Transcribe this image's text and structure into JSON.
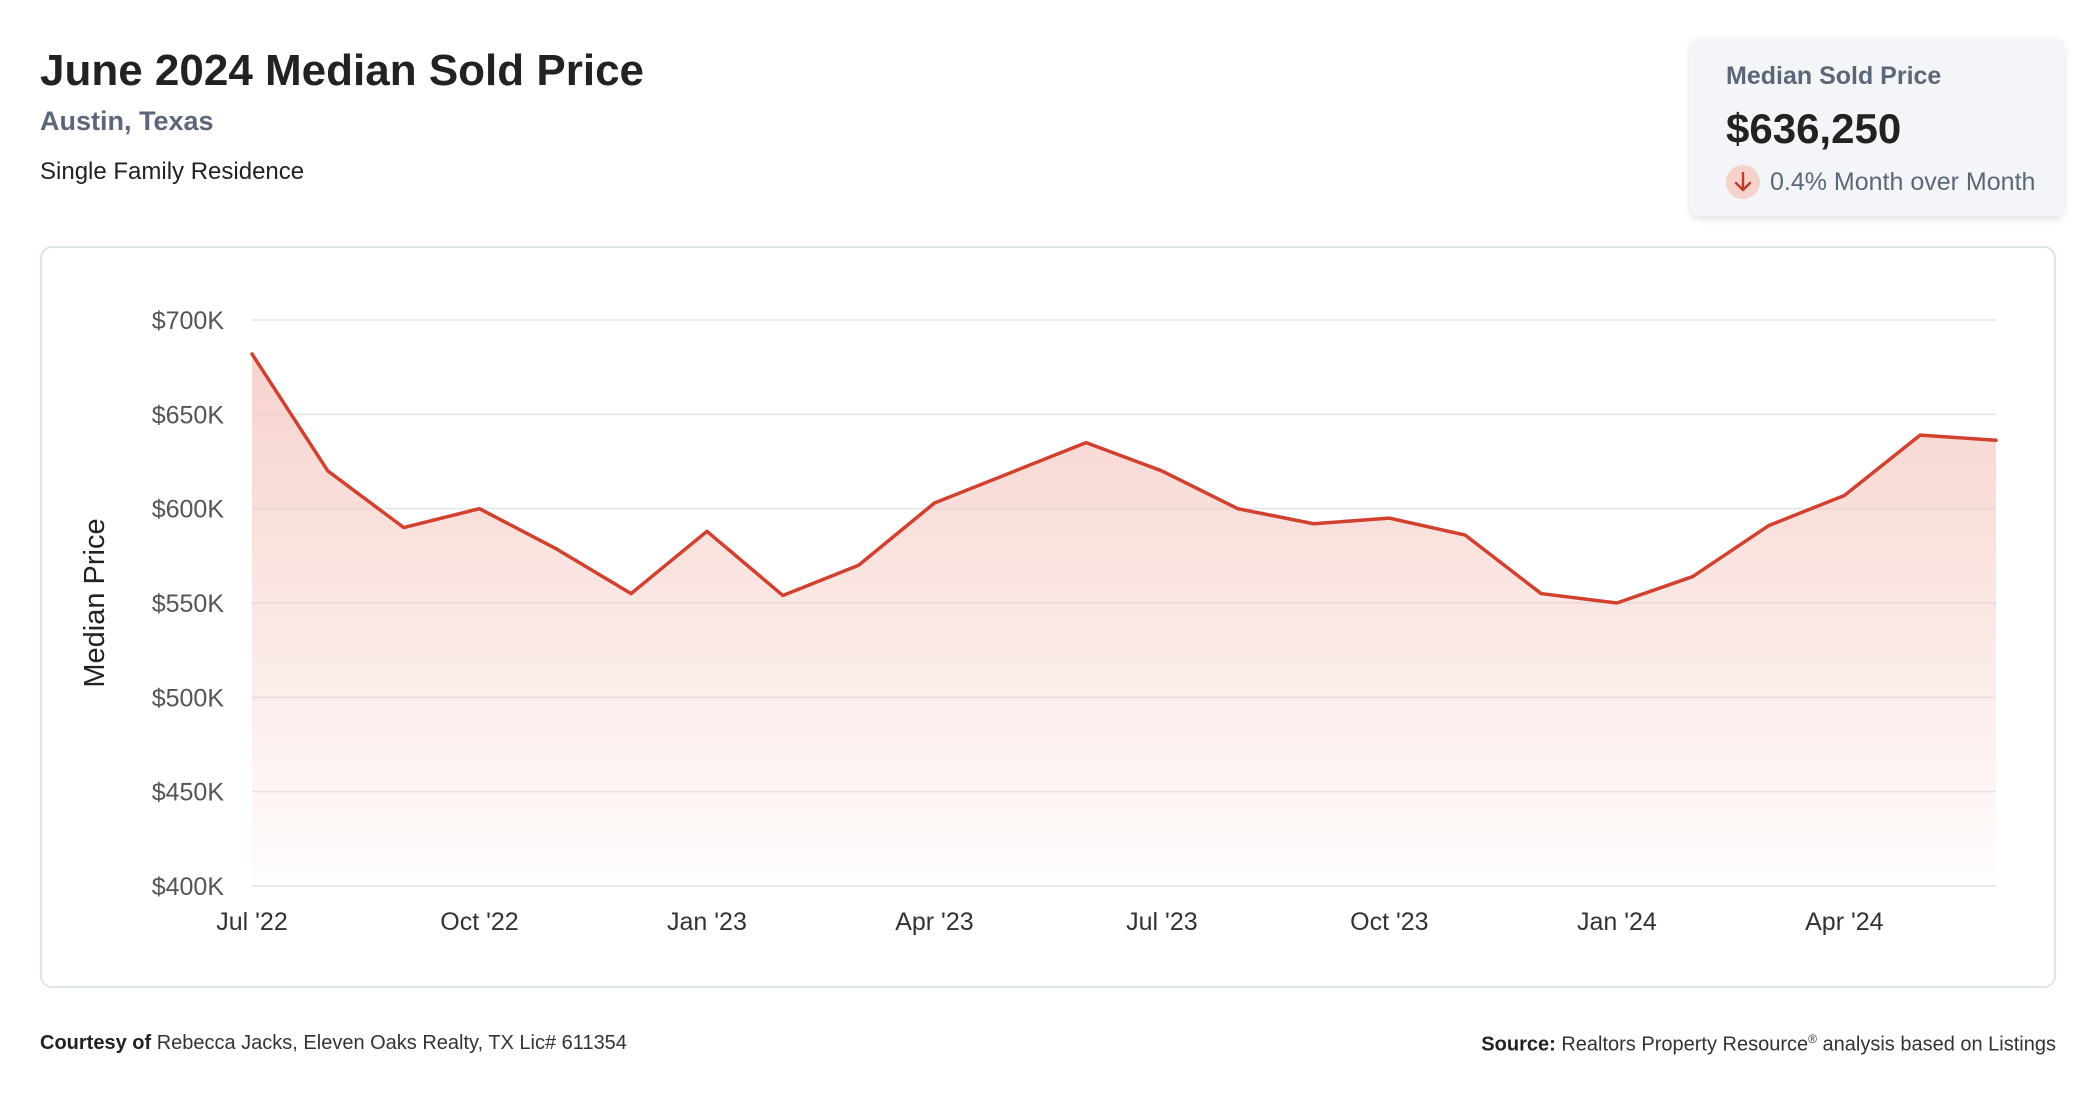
{
  "header": {
    "title": "June 2024 Median Sold Price",
    "location": "Austin, Texas",
    "property_type": "Single Family Residence"
  },
  "stat_card": {
    "label": "Median Sold Price",
    "value": "$636,250",
    "change": "0.4% Month over Month",
    "direction_icon": "arrow-down-icon"
  },
  "colors": {
    "line": "#d2402e",
    "fill": "#f4c4bd",
    "grid": "#e2e5e8",
    "secondary_text": "#5b6778"
  },
  "chart_data": {
    "type": "area",
    "title": "",
    "xlabel": "",
    "ylabel": "Median Price",
    "ylim": [
      400000,
      700000
    ],
    "yticks": [
      700000,
      650000,
      600000,
      550000,
      500000,
      450000,
      400000
    ],
    "ytick_labels": [
      "$700K",
      "$650K",
      "$600K",
      "$550K",
      "$500K",
      "$450K",
      "$400K"
    ],
    "xtick_labels": [
      "Jul '22",
      "Oct '22",
      "Jan '23",
      "Apr '23",
      "Jul '23",
      "Oct '23",
      "Jan '24",
      "Apr '24"
    ],
    "x": [
      "Jul '22",
      "Aug '22",
      "Sep '22",
      "Oct '22",
      "Nov '22",
      "Dec '22",
      "Jan '23",
      "Feb '23",
      "Mar '23",
      "Apr '23",
      "May '23",
      "Jun '23",
      "Jul '23",
      "Aug '23",
      "Sep '23",
      "Oct '23",
      "Nov '23",
      "Dec '23",
      "Jan '24",
      "Feb '24",
      "Mar '24",
      "Apr '24",
      "May '24",
      "Jun '24"
    ],
    "series": [
      {
        "values": [
          682000,
          620000,
          590000,
          600000,
          579000,
          555000,
          588000,
          554000,
          570000,
          603000,
          619000,
          635000,
          620000,
          600000,
          592000,
          595000,
          586000,
          555000,
          550000,
          564000,
          591000,
          607000,
          639000,
          636250
        ]
      }
    ],
    "grid": true,
    "legend": "none"
  },
  "footer": {
    "courtesy_label": "Courtesy of",
    "courtesy_text": "Rebecca Jacks, Eleven Oaks Realty, TX Lic# 611354",
    "source_label": "Source:",
    "source_text": "Realtors Property Resource",
    "source_mark": "®",
    "source_suffix": "analysis based on Listings"
  }
}
